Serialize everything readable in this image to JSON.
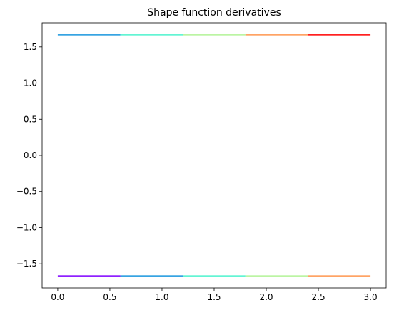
{
  "chart_data": {
    "type": "line",
    "title": "Shape function derivatives",
    "xlabel": "",
    "ylabel": "",
    "xlim": [
      -0.15,
      3.15
    ],
    "ylim": [
      -1.8333,
      1.8333
    ],
    "xticks": [
      0.0,
      0.5,
      1.0,
      1.5,
      2.0,
      2.5,
      3.0
    ],
    "xtick_labels": [
      "0.0",
      "0.5",
      "1.0",
      "1.5",
      "2.0",
      "2.5",
      "3.0"
    ],
    "yticks": [
      1.5,
      1.0,
      0.5,
      0.0,
      -0.5,
      -1.0,
      -1.5
    ],
    "ytick_labels": [
      "1.5",
      "1.0",
      "0.5",
      "0.0",
      "−0.5",
      "−1.0",
      "−1.5"
    ],
    "grid": false,
    "legend": "none",
    "series": [
      {
        "color": "#1996de",
        "x": [
          0.0,
          0.6
        ],
        "y": [
          1.6667,
          1.6667
        ]
      },
      {
        "color": "#7f00ff",
        "x": [
          0.0,
          0.6
        ],
        "y": [
          -1.6667,
          -1.6667
        ]
      },
      {
        "color": "#4df3ce",
        "x": [
          0.6,
          1.2
        ],
        "y": [
          1.6667,
          1.6667
        ]
      },
      {
        "color": "#1996de",
        "x": [
          0.6,
          1.2
        ],
        "y": [
          -1.6667,
          -1.6667
        ]
      },
      {
        "color": "#b2f396",
        "x": [
          1.2,
          1.8
        ],
        "y": [
          1.6667,
          1.6667
        ]
      },
      {
        "color": "#4df3ce",
        "x": [
          1.2,
          1.8
        ],
        "y": [
          -1.6667,
          -1.6667
        ]
      },
      {
        "color": "#ff964f",
        "x": [
          1.8,
          2.4
        ],
        "y": [
          1.6667,
          1.6667
        ]
      },
      {
        "color": "#b2f396",
        "x": [
          1.8,
          2.4
        ],
        "y": [
          -1.6667,
          -1.6667
        ]
      },
      {
        "color": "#ff0000",
        "x": [
          2.4,
          3.0
        ],
        "y": [
          1.6667,
          1.6667
        ]
      },
      {
        "color": "#ff964f",
        "x": [
          2.4,
          3.0
        ],
        "y": [
          -1.6667,
          -1.6667
        ]
      }
    ]
  }
}
